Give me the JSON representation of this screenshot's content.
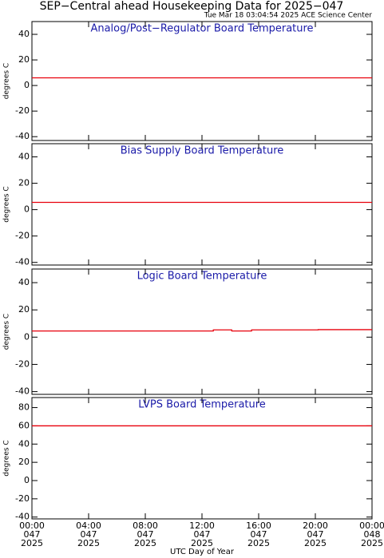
{
  "header": {
    "title": "SEP−Central ahead Housekeeping Data for 2025−047",
    "subtitle": "Tue Mar 18 03:04:54 2025 ACE Science Center"
  },
  "chart_data": [
    {
      "type": "line",
      "title": "Analog/Post−Regulator Board Temperature",
      "ylabel": "degrees C",
      "x": [
        0,
        24
      ],
      "series": [
        {
          "color": "#e8000b",
          "values": [
            6,
            6
          ]
        }
      ],
      "xlim": [
        0,
        24
      ],
      "ylim": [
        -43,
        50
      ],
      "yticks": [
        -40,
        -20,
        0,
        20,
        40
      ]
    },
    {
      "type": "line",
      "title": "Bias Supply Board Temperature",
      "ylabel": "degrees C",
      "x": [
        0,
        24
      ],
      "series": [
        {
          "color": "#e8000b",
          "values": [
            5.5,
            5.5
          ]
        }
      ],
      "xlim": [
        0,
        24
      ],
      "ylim": [
        -42,
        50
      ],
      "yticks": [
        -40,
        -20,
        0,
        20,
        40
      ]
    },
    {
      "type": "line",
      "title": "Logic Board Temperature",
      "ylabel": "degrees C",
      "x": [
        0,
        12.8,
        12.8,
        14.1,
        14.1,
        15.5,
        15.5,
        20.2,
        20.2,
        24
      ],
      "series": [
        {
          "color": "#e8000b",
          "values": [
            4.5,
            4.5,
            5.3,
            5.3,
            4.5,
            4.5,
            5.3,
            5.3,
            5.5,
            5.5
          ]
        }
      ],
      "xlim": [
        0,
        24
      ],
      "ylim": [
        -42,
        50
      ],
      "yticks": [
        -40,
        -20,
        0,
        20,
        40
      ]
    },
    {
      "type": "line",
      "title": "LVPS Board Temperature",
      "ylabel": "degrees C",
      "xlabel": "UTC Day of Year",
      "x": [
        0,
        24
      ],
      "series": [
        {
          "color": "#e8000b",
          "values": [
            60,
            60
          ]
        }
      ],
      "xlim": [
        0,
        24
      ],
      "ylim": [
        -42,
        91
      ],
      "yticks": [
        -40,
        -20,
        0,
        20,
        40,
        60,
        80
      ],
      "xticks": [
        {
          "value": 0,
          "label": "00:00\n047\n2025"
        },
        {
          "value": 4,
          "label": "04:00\n047\n2025"
        },
        {
          "value": 8,
          "label": "08:00\n047\n2025"
        },
        {
          "value": 12,
          "label": "12:00\n047\n2025"
        },
        {
          "value": 16,
          "label": "16:00\n047\n2025"
        },
        {
          "value": 20,
          "label": "20:00\n047\n2025"
        },
        {
          "value": 24,
          "label": "00:00\n048\n2025"
        }
      ]
    }
  ]
}
